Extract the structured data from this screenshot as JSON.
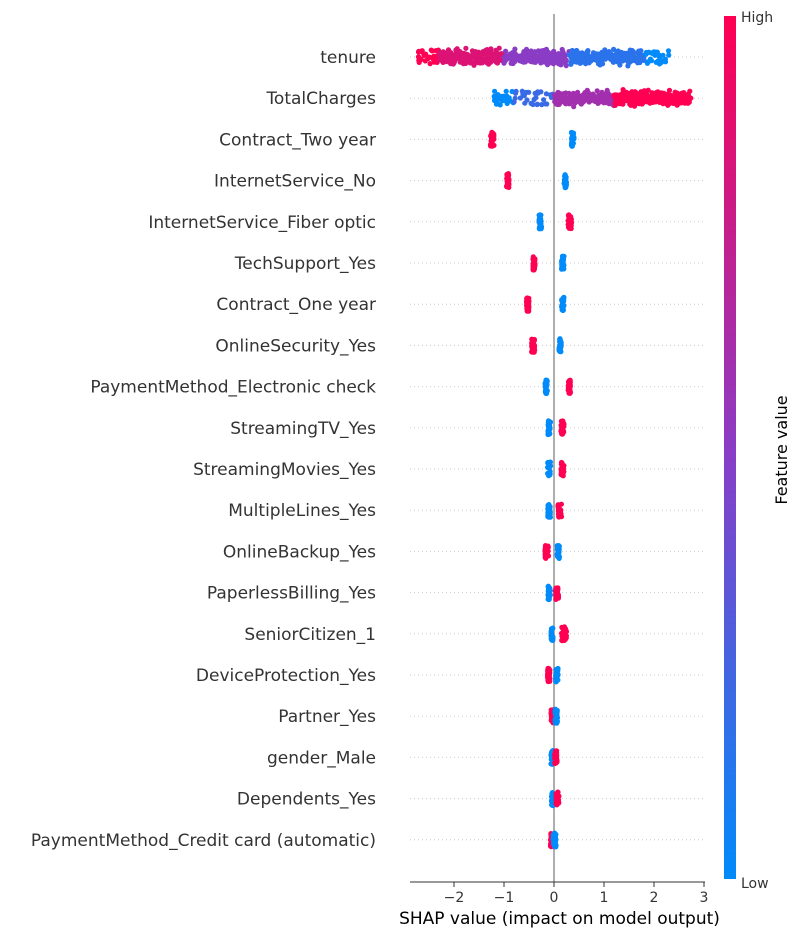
{
  "chart_data": {
    "type": "scatter",
    "subtype": "shap-beeswarm",
    "xlabel": "SHAP value (impact on model output)",
    "xlim": [
      -2.9,
      3.0
    ],
    "xticks": [
      -2,
      -1,
      0,
      1,
      2,
      3
    ],
    "xtick_labels": [
      "−2",
      "−1",
      "0",
      "1",
      "2",
      "3"
    ],
    "colorbar": {
      "label": "Feature value",
      "high_label": "High",
      "low_label": "Low",
      "low_color": "#008bfb",
      "mid_color": "#8b3cc5",
      "high_color": "#ff0052"
    },
    "features": [
      {
        "name": "tenure",
        "clusters": [
          {
            "x_min": -2.75,
            "x_max": -2.3,
            "color_value": 1.0
          },
          {
            "x_min": -2.3,
            "x_max": -1.0,
            "color_value": 0.85
          },
          {
            "x_min": -1.0,
            "x_max": 0.3,
            "color_value": 0.5
          },
          {
            "x_min": 0.3,
            "x_max": 1.8,
            "color_value": 0.15
          },
          {
            "x_min": 1.8,
            "x_max": 2.3,
            "color_value": 0.0
          }
        ]
      },
      {
        "name": "TotalCharges",
        "clusters": [
          {
            "x_min": -1.2,
            "x_max": -0.8,
            "color_value": 0.0
          },
          {
            "x_min": -0.8,
            "x_max": 0.0,
            "color_value": 0.2
          },
          {
            "x_min": 0.0,
            "x_max": 1.2,
            "color_value": 0.6
          },
          {
            "x_min": 1.2,
            "x_max": 2.75,
            "color_value": 1.0
          }
        ]
      },
      {
        "name": "Contract_Two year",
        "clusters": [
          {
            "x_min": -1.27,
            "x_max": -1.2,
            "color_value": 1.0
          },
          {
            "x_min": 0.35,
            "x_max": 0.4,
            "color_value": 0.0
          }
        ]
      },
      {
        "name": "InternetService_No",
        "clusters": [
          {
            "x_min": -0.95,
            "x_max": -0.9,
            "color_value": 1.0
          },
          {
            "x_min": 0.2,
            "x_max": 0.25,
            "color_value": 0.0
          }
        ]
      },
      {
        "name": "InternetService_Fiber optic",
        "clusters": [
          {
            "x_min": -0.3,
            "x_max": -0.25,
            "color_value": 0.0
          },
          {
            "x_min": 0.28,
            "x_max": 0.35,
            "color_value": 1.0
          }
        ]
      },
      {
        "name": "TechSupport_Yes",
        "clusters": [
          {
            "x_min": -0.42,
            "x_max": -0.38,
            "color_value": 1.0
          },
          {
            "x_min": 0.15,
            "x_max": 0.2,
            "color_value": 0.0
          }
        ]
      },
      {
        "name": "Contract_One year",
        "clusters": [
          {
            "x_min": -0.55,
            "x_max": -0.5,
            "color_value": 1.0
          },
          {
            "x_min": 0.15,
            "x_max": 0.2,
            "color_value": 0.0
          }
        ]
      },
      {
        "name": "OnlineSecurity_Yes",
        "clusters": [
          {
            "x_min": -0.45,
            "x_max": -0.38,
            "color_value": 1.0
          },
          {
            "x_min": 0.1,
            "x_max": 0.15,
            "color_value": 0.0
          }
        ]
      },
      {
        "name": "PaymentMethod_Electronic check",
        "clusters": [
          {
            "x_min": -0.18,
            "x_max": -0.13,
            "color_value": 0.0
          },
          {
            "x_min": 0.28,
            "x_max": 0.33,
            "color_value": 1.0
          }
        ]
      },
      {
        "name": "StreamingTV_Yes",
        "clusters": [
          {
            "x_min": -0.12,
            "x_max": -0.07,
            "color_value": 0.0
          },
          {
            "x_min": 0.14,
            "x_max": 0.2,
            "color_value": 1.0
          }
        ]
      },
      {
        "name": "StreamingMovies_Yes",
        "clusters": [
          {
            "x_min": -0.13,
            "x_max": -0.07,
            "color_value": 0.0
          },
          {
            "x_min": 0.14,
            "x_max": 0.2,
            "color_value": 1.0
          }
        ]
      },
      {
        "name": "MultipleLines_Yes",
        "clusters": [
          {
            "x_min": -0.13,
            "x_max": -0.07,
            "color_value": 0.0
          },
          {
            "x_min": 0.08,
            "x_max": 0.15,
            "color_value": 1.0
          }
        ]
      },
      {
        "name": "OnlineBackup_Yes",
        "clusters": [
          {
            "x_min": -0.18,
            "x_max": -0.1,
            "color_value": 1.0
          },
          {
            "x_min": 0.06,
            "x_max": 0.11,
            "color_value": 0.0
          }
        ]
      },
      {
        "name": "PaperlessBilling_Yes",
        "clusters": [
          {
            "x_min": -0.12,
            "x_max": -0.07,
            "color_value": 0.0
          },
          {
            "x_min": 0.03,
            "x_max": 0.09,
            "color_value": 1.0
          }
        ]
      },
      {
        "name": "SeniorCitizen_1",
        "clusters": [
          {
            "x_min": -0.06,
            "x_max": -0.02,
            "color_value": 0.0
          },
          {
            "x_min": 0.15,
            "x_max": 0.25,
            "color_value": 1.0
          }
        ]
      },
      {
        "name": "DeviceProtection_Yes",
        "clusters": [
          {
            "x_min": -0.13,
            "x_max": -0.08,
            "color_value": 1.0
          },
          {
            "x_min": 0.03,
            "x_max": 0.08,
            "color_value": 0.0
          }
        ]
      },
      {
        "name": "Partner_Yes",
        "clusters": [
          {
            "x_min": -0.06,
            "x_max": 0.0,
            "color_value": 1.0
          },
          {
            "x_min": 0.02,
            "x_max": 0.07,
            "color_value": 0.0
          }
        ]
      },
      {
        "name": "gender_Male",
        "clusters": [
          {
            "x_min": -0.06,
            "x_max": -0.01,
            "color_value": 0.0
          },
          {
            "x_min": 0.01,
            "x_max": 0.06,
            "color_value": 1.0
          }
        ]
      },
      {
        "name": "Dependents_Yes",
        "clusters": [
          {
            "x_min": -0.05,
            "x_max": 0.0,
            "color_value": 0.0
          },
          {
            "x_min": 0.04,
            "x_max": 0.1,
            "color_value": 1.0
          }
        ]
      },
      {
        "name": "PaymentMethod_Credit card (automatic)",
        "clusters": [
          {
            "x_min": -0.07,
            "x_max": -0.02,
            "color_value": 1.0
          },
          {
            "x_min": -0.02,
            "x_max": 0.04,
            "color_value": 0.0
          }
        ]
      }
    ]
  }
}
